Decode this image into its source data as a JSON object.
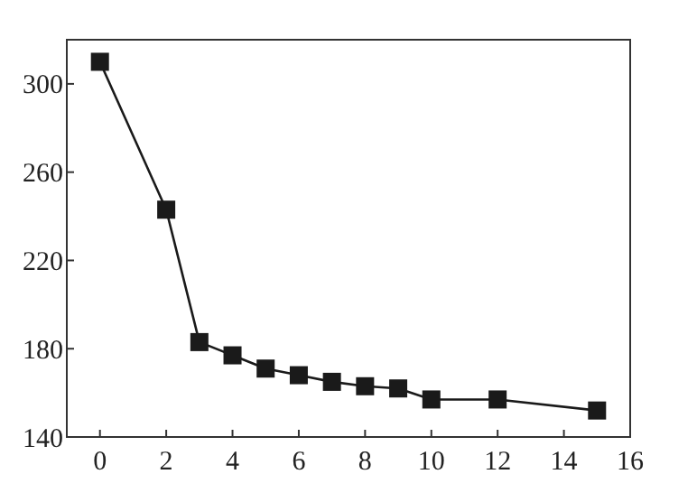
{
  "chart_data": {
    "type": "line",
    "x": [
      0,
      2,
      3,
      4,
      5,
      6,
      7,
      8,
      9,
      10,
      12,
      15
    ],
    "series": [
      {
        "color": "#1a1a1a",
        "values": [
          310,
          243,
          183,
          177,
          171,
          168,
          165,
          163,
          162,
          157,
          157,
          152
        ]
      }
    ],
    "xlim": [
      -1,
      16
    ],
    "xticks": [
      0,
      2,
      4,
      6,
      8,
      10,
      12,
      14,
      16
    ],
    "ylim": [
      140,
      320
    ],
    "yticks": [
      140,
      180,
      220,
      260,
      300
    ],
    "marker": "square",
    "line_style": "solid",
    "grid": false
  }
}
